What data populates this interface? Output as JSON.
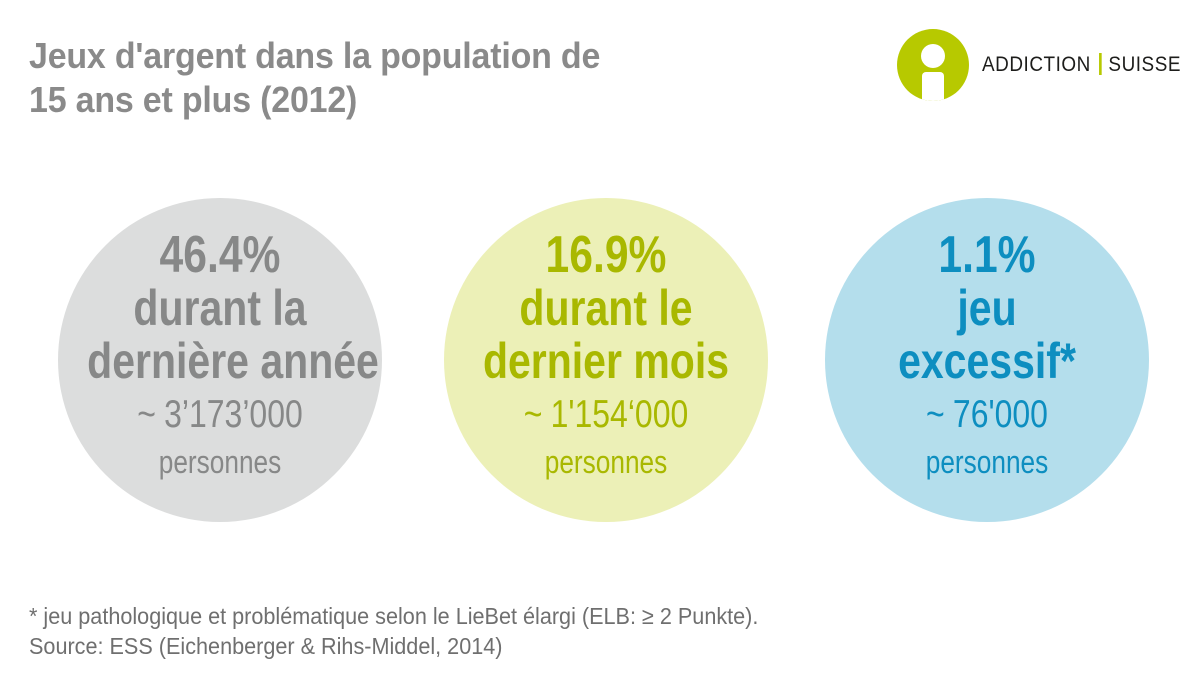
{
  "title": {
    "line1": "Jeux d'argent dans la population de",
    "line2": "15 ans et plus (2012)"
  },
  "logo": {
    "icon": "person-info-icon",
    "name_left": "ADDICTION",
    "name_right": "SUISSE",
    "brand_color": "#b7c900"
  },
  "stats": [
    {
      "percent": "46.4%",
      "label_line1": "durant la",
      "label_line2": "dernière année",
      "approx_symbol": "~",
      "count": "3’173’000",
      "unit": "personnes",
      "circle_color": "#dcdddd",
      "text_color": "#878888"
    },
    {
      "percent": "16.9%",
      "label_line1": "durant le",
      "label_line2": "dernier mois",
      "approx_symbol": "~",
      "count": "1'154‘000",
      "unit": "personnes",
      "circle_color": "#ecf0b7",
      "text_color": "#a9b800"
    },
    {
      "percent": "1.1%",
      "label_line1": "jeu",
      "label_line2": "excessif*",
      "approx_symbol": "~",
      "count": "76'000",
      "unit": "personnes",
      "circle_color": "#b4deec",
      "text_color": "#0d8ec0"
    }
  ],
  "footnote": {
    "note": "* jeu pathologique et problématique selon le LieBet élargi (ELB: ≥ 2 Punkte).",
    "source": "Source: ESS (Eichenberger & Rihs-Middel, 2014)"
  }
}
